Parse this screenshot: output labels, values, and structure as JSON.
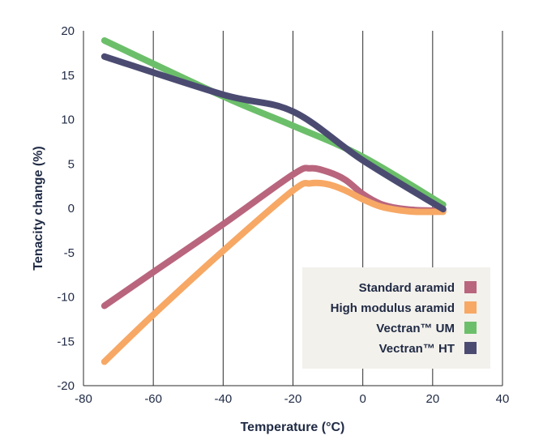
{
  "chart_data": {
    "type": "line",
    "title": "",
    "xlabel": "Temperature (°C)",
    "ylabel": "Tenacity change (%)",
    "xlim": [
      -80,
      40
    ],
    "ylim": [
      -20,
      20
    ],
    "x_ticks": [
      -80,
      -60,
      -40,
      -20,
      0,
      20,
      40
    ],
    "y_ticks": [
      20,
      15,
      10,
      5,
      0,
      -5,
      -10,
      -15,
      -20
    ],
    "grid": "vertical",
    "legend_position": "bottom-right",
    "series": [
      {
        "name": "Standard aramid",
        "color": "#b9657e",
        "points": [
          [
            -74,
            -11
          ],
          [
            -60,
            -7.2
          ],
          [
            -40,
            -1.8
          ],
          [
            -20,
            3.8
          ],
          [
            -15,
            4.5
          ],
          [
            -10,
            4.1
          ],
          [
            -5,
            3.2
          ],
          [
            0,
            1.6
          ],
          [
            5,
            0.5
          ],
          [
            10,
            0
          ],
          [
            15,
            -0.2
          ],
          [
            23,
            -0.3
          ]
        ]
      },
      {
        "name": "High modulus aramid",
        "color": "#f7a865",
        "points": [
          [
            -74,
            -17.3
          ],
          [
            -60,
            -12
          ],
          [
            -40,
            -4.8
          ],
          [
            -20,
            2
          ],
          [
            -15,
            2.8
          ],
          [
            -10,
            2.7
          ],
          [
            -5,
            2
          ],
          [
            0,
            1
          ],
          [
            5,
            0.2
          ],
          [
            10,
            -0.2
          ],
          [
            15,
            -0.4
          ],
          [
            23,
            -0.4
          ]
        ]
      },
      {
        "name": "Vectran™ UM",
        "color": "#6cbf6a",
        "points": [
          [
            -74,
            18.9
          ],
          [
            -40,
            12.6
          ],
          [
            -20,
            9.3
          ],
          [
            0,
            5.8
          ],
          [
            23,
            0.4
          ]
        ]
      },
      {
        "name": "Vectran™ HT",
        "color": "#4b4b72",
        "points": [
          [
            -74,
            17.1
          ],
          [
            -40,
            12.8
          ],
          [
            -20,
            10.9
          ],
          [
            0,
            5.4
          ],
          [
            23,
            -0.1
          ]
        ]
      }
    ]
  }
}
